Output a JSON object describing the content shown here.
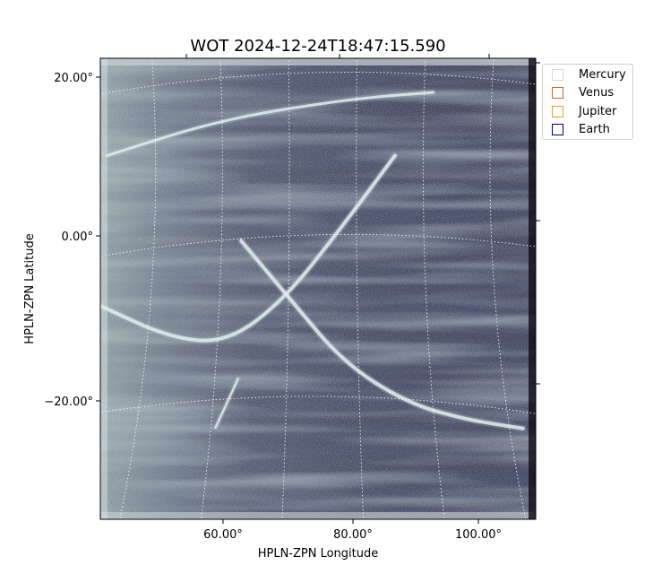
{
  "chart_data": {
    "type": "image",
    "title": "WOT 2024-12-24T18:47:15.590",
    "xlabel": "HPLN-ZPN Longitude",
    "ylabel": "HPLN-ZPN Latitude",
    "x_ticks": [
      {
        "value": 60,
        "label": "60.00°"
      },
      {
        "value": 80,
        "label": "80.00°"
      },
      {
        "value": 100,
        "label": "100.00°"
      }
    ],
    "y_ticks": [
      {
        "value": 20,
        "label": "20.00°"
      },
      {
        "value": 0,
        "label": "0.00°"
      },
      {
        "value": -20,
        "label": "−20.00°"
      }
    ],
    "xlim": [
      41,
      109
    ],
    "ylim": [
      -34.8,
      22
    ],
    "grid": true,
    "colormap": "bone",
    "legend": {
      "placement": "outside-right-top",
      "entries": [
        {
          "name": "Mercury",
          "color": "#d9d9d9"
        },
        {
          "name": "Venus",
          "color": "#d2691e"
        },
        {
          "name": "Jupiter",
          "color": "#daa520"
        },
        {
          "name": "Earth",
          "color": "#000080"
        }
      ]
    },
    "streaks": [
      {
        "name": "upper-streak",
        "points": [
          [
            42,
            10
          ],
          [
            60,
            14.5
          ],
          [
            80,
            17
          ],
          [
            93,
            17.8
          ]
        ]
      },
      {
        "name": "left-arc",
        "points": [
          [
            41,
            -8.5
          ],
          [
            52,
            -12.5
          ],
          [
            61,
            -13
          ],
          [
            70,
            -7.5
          ],
          [
            79,
            1.5
          ],
          [
            87,
            10
          ]
        ]
      },
      {
        "name": "right-arc",
        "points": [
          [
            63,
            -0.5
          ],
          [
            71,
            -8
          ],
          [
            79,
            -15.5
          ],
          [
            89,
            -20.5
          ],
          [
            98,
            -22.5
          ],
          [
            107,
            -23.6
          ]
        ]
      },
      {
        "name": "small-streak",
        "points": [
          [
            59,
            -23.5
          ],
          [
            62.5,
            -17.5
          ]
        ]
      }
    ]
  }
}
